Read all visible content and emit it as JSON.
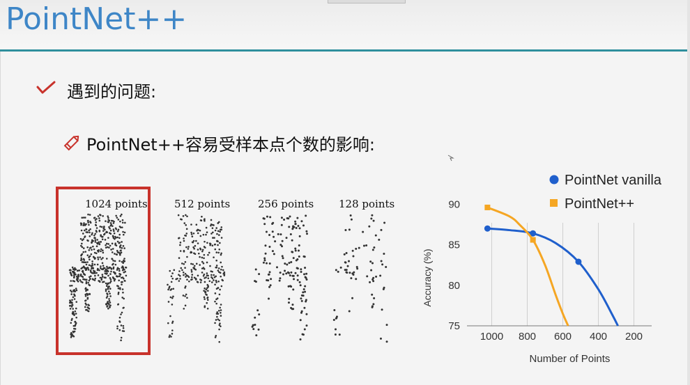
{
  "slide": {
    "title": "PointNet++",
    "bullet_1": "遇到的问题:",
    "bullet_2": "PointNet++容易受样本点个数的影响:"
  },
  "icons": {
    "bullet_1": "check-icon",
    "bullet_2": "pencil-icon"
  },
  "colors": {
    "title": "#3e86c7",
    "title_rule": "#2f8f9d",
    "highlight_box": "#c8322b",
    "vanilla_series": "#1f5fcc",
    "plusplus_series": "#f5a623"
  },
  "figure": {
    "labels": [
      "1024 points",
      "512 points",
      "256 points",
      "128 points"
    ],
    "highlighted": "1024 points"
  },
  "chart_data": {
    "type": "line",
    "title": "",
    "xlabel": "Number of Points",
    "ylabel": "Accuracy (%)",
    "x_ticks": [
      "1000",
      "800",
      "600",
      "400",
      "200"
    ],
    "y_ticks": [
      "90",
      "85",
      "80",
      "75"
    ],
    "xlim": [
      1100,
      100
    ],
    "ylim": [
      75,
      92
    ],
    "x_reversed": true,
    "grid": "vertical",
    "legend_position": "top-right",
    "series": [
      {
        "name": "PointNet vanilla",
        "color": "#1f5fcc",
        "marker": "circle",
        "x": [
          1024,
          768,
          512
        ],
        "y": [
          87.0,
          86.4,
          82.9
        ],
        "curve_x": [
          1024,
          900,
          768,
          640,
          512,
          400,
          320,
          290
        ],
        "curve_y": [
          87.0,
          86.8,
          86.4,
          85.2,
          82.9,
          79.5,
          76.3,
          75.0
        ]
      },
      {
        "name": "PointNet++",
        "color": "#f5a623",
        "marker": "square",
        "x": [
          1024,
          768
        ],
        "y": [
          89.6,
          85.6
        ],
        "curve_x": [
          1024,
          900,
          840,
          768,
          700,
          640,
          600,
          570
        ],
        "curve_y": [
          89.6,
          88.5,
          87.4,
          85.6,
          82.5,
          78.8,
          76.5,
          75.0
        ]
      }
    ]
  }
}
